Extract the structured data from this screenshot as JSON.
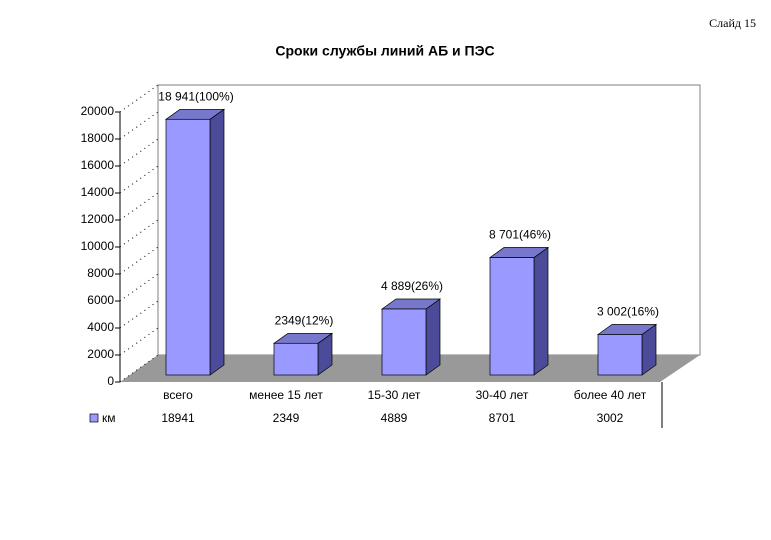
{
  "slide_label": "Слайд 15",
  "chart_data": {
    "type": "bar3d",
    "title": "Сроки службы линий АБ и ПЭС",
    "categories": [
      "всего",
      "менее 15 лет",
      "15-30 лет",
      "30-40 лет",
      "более 40 лет"
    ],
    "series": [
      {
        "name": "км",
        "color": "#9999ff",
        "values": [
          18941,
          2349,
          4889,
          8701,
          3002
        ],
        "value_labels": [
          "18 941(100%)",
          "2349(12%)",
          "4 889(26%)",
          "8 701(46%)",
          "3 002(16%)"
        ]
      }
    ],
    "ylim": [
      0,
      20000
    ],
    "yticks": [
      0,
      2000,
      4000,
      6000,
      8000,
      10000,
      12000,
      14000,
      16000,
      18000,
      20000
    ],
    "grid": true,
    "data_table": true
  }
}
